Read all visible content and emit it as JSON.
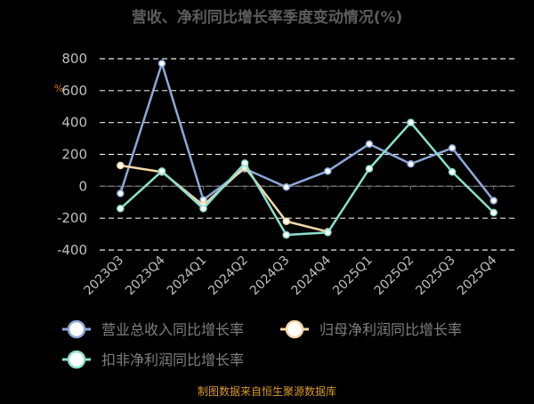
{
  "chart_data": {
    "type": "line",
    "title": "营收、净利同比增长率季度变动情况(%)",
    "unit_label": "%",
    "source": "制图数据来自恒生聚源数据库",
    "categories": [
      "2023Q3",
      "2023Q4",
      "2024Q1",
      "2024Q2",
      "2024Q3",
      "2024Q4",
      "2025Q1",
      "2025Q2",
      "2025Q3",
      "2025Q4"
    ],
    "ylim": [
      -400,
      800
    ],
    "yticks": [
      800,
      600,
      400,
      200,
      0,
      -200,
      -400
    ],
    "grid": true,
    "legend_position": "bottom",
    "series": [
      {
        "name": "营业总收入同比增长率",
        "color": "#8DA8D8",
        "values": [
          -45,
          770,
          -85,
          110,
          -5,
          95,
          265,
          140,
          240,
          -90
        ]
      },
      {
        "name": "归母净利润同比增长率",
        "color": "#F5D8A8",
        "values": [
          130,
          90,
          -120,
          120,
          -220,
          -285,
          null,
          null,
          null,
          null
        ]
      },
      {
        "name": "扣非净利润同比增长率",
        "color": "#8BE0CE",
        "values": [
          -140,
          95,
          -140,
          145,
          -305,
          -290,
          110,
          400,
          90,
          -165
        ]
      }
    ]
  }
}
